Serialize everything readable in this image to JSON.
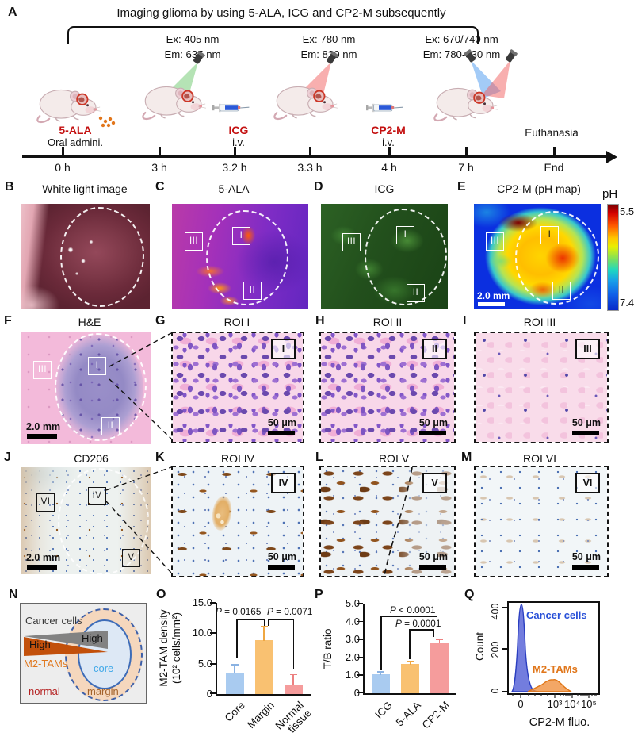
{
  "panelA": {
    "letter": "A",
    "title": "Imaging glioma by using 5-ALA, ICG and CP2-M subsequently",
    "exem": [
      {
        "ex": "Ex: 405 nm",
        "em": "Em: 635 nm"
      },
      {
        "ex": "Ex: 780 nm",
        "em": "Em: 820 nm"
      },
      {
        "ex": "Ex: 670/740 nm",
        "em": "Em: 780-830 nm"
      }
    ],
    "agents": [
      {
        "name": "5-ALA",
        "route": "Oral admini."
      },
      {
        "name": "ICG",
        "route": "i.v."
      },
      {
        "name": "CP2-M",
        "route": "i.v."
      }
    ],
    "euthanasia": "Euthanasia",
    "ticks": [
      "0 h",
      "3 h",
      "3.2 h",
      "3.3 h",
      "4 h",
      "7 h",
      "End"
    ]
  },
  "panelB": {
    "letter": "B",
    "title": "White light image"
  },
  "panelC": {
    "letter": "C",
    "title": "5-ALA",
    "roi_I": "I",
    "roi_II": "II",
    "roi_III": "III"
  },
  "panelD": {
    "letter": "D",
    "title": "ICG",
    "roi_I": "I",
    "roi_II": "II",
    "roi_III": "III"
  },
  "panelE": {
    "letter": "E",
    "title": "CP2-M (pH map)",
    "roi_I": "I",
    "roi_II": "II",
    "roi_III": "III",
    "colorbar_label": "pH",
    "colorbar_top": "5.5",
    "colorbar_bottom": "7.4",
    "scalebar": "2.0 mm"
  },
  "panelF": {
    "letter": "F",
    "title": "H&E",
    "roi_I": "I",
    "roi_II": "II",
    "roi_III": "III",
    "scalebar": "2.0 mm"
  },
  "panelG": {
    "letter": "G",
    "title": "ROI I",
    "tag": "I",
    "scalebar": "50 μm"
  },
  "panelH": {
    "letter": "H",
    "title": "ROI II",
    "tag": "II",
    "scalebar": "50 μm"
  },
  "panelI": {
    "letter": "I",
    "title": "ROI III",
    "tag": "III",
    "scalebar": "50 μm"
  },
  "panelJ": {
    "letter": "J",
    "title": "CD206",
    "roi_IV": "IV",
    "roi_V": "V",
    "roi_VI": "VI",
    "scalebar": "2.0 mm"
  },
  "panelK": {
    "letter": "K",
    "title": "ROI IV",
    "tag": "IV",
    "scalebar": "50 μm"
  },
  "panelL": {
    "letter": "L",
    "title": "ROI V",
    "tag": "V",
    "scalebar": "50 μm"
  },
  "panelM": {
    "letter": "M",
    "title": "ROI VI",
    "tag": "VI",
    "scalebar": "50 μm"
  },
  "panelN": {
    "letter": "N",
    "cancer_label": "Cancer cells",
    "high_left": "High",
    "high_right": "High",
    "m2_label": "M2-TAMs",
    "core_label": "core",
    "margin_label": "margin",
    "normal_label": "normal"
  },
  "panelO": {
    "letter": "O"
  },
  "panelP": {
    "letter": "P"
  },
  "panelQ": {
    "letter": "Q"
  },
  "chart_data": [
    {
      "id": "O",
      "type": "bar",
      "categories": [
        "Core",
        "Margin",
        "Normal tissue"
      ],
      "values": [
        3.5,
        8.9,
        1.6
      ],
      "errors": [
        1.2,
        2.1,
        1.5
      ],
      "ylabel_line1": "M2-TAM density",
      "ylabel_line2": "(10² cells/mm²)",
      "ylim": [
        0,
        15
      ],
      "yticks": [
        "15.0",
        "10.0",
        "5.0",
        "0"
      ],
      "pvals": [
        "P = 0.0165",
        "P = 0.0071"
      ],
      "colors": [
        "#a9cbf0",
        "#f9c171",
        "#f59c9c"
      ],
      "err_colors": [
        "#8ab2e2",
        "#efa742",
        "#ec8080"
      ],
      "grid": false,
      "legend": "none"
    },
    {
      "id": "P",
      "type": "bar",
      "categories": [
        "ICG",
        "5-ALA",
        "CP2-M"
      ],
      "values": [
        1.05,
        1.65,
        2.85
      ],
      "errors": [
        0.12,
        0.1,
        0.13
      ],
      "ylabel": "T/B ratio",
      "ylim": [
        0,
        5
      ],
      "yticks": [
        "5.0",
        "4.0",
        "3.0",
        "2.0",
        "1.0",
        "0"
      ],
      "pvals": [
        "P < 0.0001",
        "P = 0.0001"
      ],
      "colors": [
        "#a9cbf0",
        "#f9c171",
        "#f59c9c"
      ],
      "err_colors": [
        "#8ab2e2",
        "#efa742",
        "#ec8080"
      ],
      "grid": false,
      "legend": "none"
    },
    {
      "id": "Q",
      "type": "area",
      "xlabel": "CP2-M fluo.",
      "ylabel": "Count",
      "xticks": [
        "0",
        "10³",
        "10⁴",
        "10⁵"
      ],
      "yticks": [
        "400",
        "200",
        "0"
      ],
      "ylim": [
        0,
        430
      ],
      "xscale": "biexponential",
      "series": [
        {
          "name": "Cancer cells",
          "color": "#4155cf",
          "peak_x": "0",
          "peak_count": 420
        },
        {
          "name": "M2-TAMs",
          "color": "#e8832a",
          "peak_x": "10³",
          "peak_count": 60
        }
      ],
      "legend": "inside"
    }
  ]
}
